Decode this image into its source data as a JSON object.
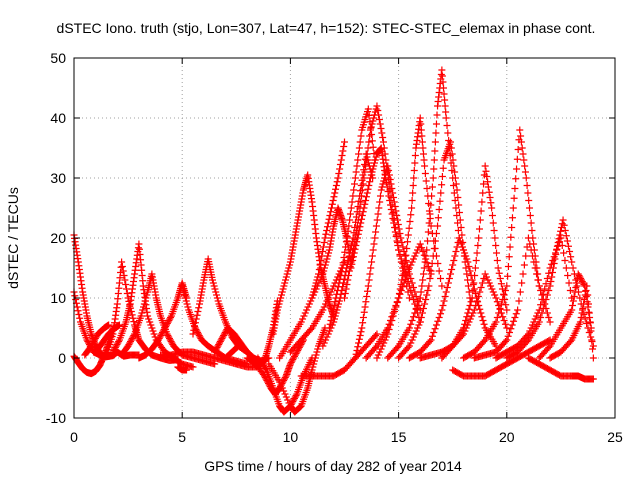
{
  "chart_data": {
    "type": "scatter",
    "title": "dSTEC Iono. truth (stjo, Lon=307, Lat=47, h=152): STEC-STEC_elemax in phase cont.",
    "xlabel": "GPS time / hours of day 282 of year 2014",
    "ylabel": "dSTEC  / TECUs",
    "xlim": [
      0,
      25
    ],
    "ylim": [
      -10,
      50
    ],
    "xticks": [
      0,
      5,
      10,
      15,
      20,
      25
    ],
    "yticks": [
      -10,
      0,
      10,
      20,
      30,
      40,
      50
    ],
    "grid": true,
    "marker": "plus",
    "color": "#ff0000",
    "series": [
      {
        "x": [
          0.0,
          0.2,
          0.4,
          0.6,
          0.8,
          1.0,
          1.2,
          1.4
        ],
        "y": [
          20.5,
          16,
          11,
          7,
          4,
          2,
          0.8,
          0.3
        ]
      },
      {
        "x": [
          0.0,
          0.3,
          0.6,
          0.9,
          1.2,
          1.5,
          1.8,
          2.0,
          2.3,
          2.6,
          3.0
        ],
        "y": [
          11,
          6,
          3,
          1,
          0.5,
          0.2,
          0.4,
          1,
          0.3,
          0.5,
          0.5
        ]
      },
      {
        "x": [
          0.0,
          0.2,
          0.4,
          0.6,
          0.8,
          1.0,
          1.2,
          1.4,
          1.6,
          1.8
        ],
        "y": [
          0.3,
          -0.8,
          -1.8,
          -2.4,
          -2.6,
          -2.2,
          -1.2,
          0.5,
          2.5,
          5.0
        ]
      },
      {
        "x": [
          0.5,
          0.8,
          1.1,
          1.4,
          1.6
        ],
        "y": [
          0.5,
          2,
          4,
          5,
          5.5
        ]
      },
      {
        "x": [
          1.0,
          1.3,
          1.6,
          1.9,
          2.1
        ],
        "y": [
          1,
          2.5,
          4,
          5,
          5.5
        ]
      },
      {
        "x": [
          1.5,
          1.8,
          2.0,
          2.2,
          2.5,
          2.8,
          3.0,
          3.3,
          3.6,
          4.0,
          4.4,
          4.8
        ],
        "y": [
          0.5,
          4,
          9,
          16,
          10,
          5.5,
          3,
          1.5,
          0.5,
          0,
          -0.4,
          -0.3
        ]
      },
      {
        "x": [
          1.8,
          2.1,
          2.4,
          2.6,
          2.8,
          3.0,
          3.2,
          3.4,
          3.8,
          4.2,
          4.6,
          5.0,
          5.5
        ],
        "y": [
          1,
          3,
          6,
          9,
          14,
          19,
          12,
          7,
          3,
          1,
          0,
          -1,
          -1.5
        ]
      },
      {
        "x": [
          2.2,
          2.5,
          2.8,
          3.1,
          3.4,
          3.6,
          3.8,
          4.0,
          4.3,
          4.6,
          5.0,
          5.5,
          6.0,
          6.5
        ],
        "y": [
          0.5,
          2,
          4,
          7,
          11,
          14,
          10,
          7,
          4,
          2,
          0.5,
          0,
          -0.5,
          -1
        ]
      },
      {
        "x": [
          3.0,
          3.3,
          3.6,
          3.9,
          4.2,
          4.5,
          4.8,
          5.0,
          5.2
        ],
        "y": [
          0,
          0.5,
          1.5,
          3,
          5,
          7,
          10,
          12.5,
          10
        ]
      },
      {
        "x": [
          4.0,
          4.5,
          5.0,
          5.5,
          6.0,
          6.5,
          7.0,
          7.5
        ],
        "y": [
          0.5,
          0.5,
          1,
          1,
          0.5,
          0,
          -0.5,
          -1
        ]
      },
      {
        "x": [
          4.8,
          5.0,
          5.2
        ],
        "y": [
          -1.5,
          -2,
          -2
        ]
      },
      {
        "x": [
          5.0,
          5.3,
          5.6,
          5.9,
          6.2,
          6.6,
          7.0,
          7.5,
          8.0
        ],
        "y": [
          12,
          8,
          5,
          3,
          2,
          1,
          0,
          -0.5,
          -1
        ]
      },
      {
        "x": [
          5.5,
          5.8,
          6.0,
          6.2,
          6.4,
          6.7,
          7.0,
          7.3,
          7.6,
          8.0
        ],
        "y": [
          4,
          9,
          13,
          16.5,
          13,
          9,
          6,
          3.5,
          2,
          1
        ]
      },
      {
        "x": [
          6.5,
          6.8,
          7.1,
          7.4,
          7.7,
          8.0,
          8.3,
          8.6,
          9.0
        ],
        "y": [
          1,
          3,
          5,
          4,
          2.5,
          1,
          0,
          -0.5,
          0
        ]
      },
      {
        "x": [
          7.0,
          7.3,
          7.6,
          8.0,
          8.3,
          8.5
        ],
        "y": [
          0,
          1,
          2,
          1,
          0,
          -0.5
        ]
      },
      {
        "x": [
          7.5,
          8.0,
          8.5,
          8.8,
          9.0,
          9.2,
          9.4
        ],
        "y": [
          -1,
          -1.5,
          -1.5,
          -0.5,
          2,
          5,
          9.5
        ]
      },
      {
        "x": [
          8.0,
          8.4,
          8.8,
          9.1,
          9.3,
          9.5,
          9.8,
          10.0,
          10.3,
          10.6
        ],
        "y": [
          0,
          -1,
          -3,
          -5,
          -6,
          -5,
          -3,
          -1,
          1,
          3
        ]
      },
      {
        "x": [
          8.5,
          8.9,
          9.2,
          9.5,
          9.7,
          10.0,
          10.3,
          10.6,
          11.0
        ],
        "y": [
          0,
          -2,
          -5,
          -8,
          -9,
          -8,
          -6,
          -3,
          0
        ]
      },
      {
        "x": [
          9.0,
          9.5,
          10.0,
          10.2,
          10.5,
          10.8,
          11.0,
          11.3,
          11.6
        ],
        "y": [
          -1,
          -4,
          -8,
          -9,
          -8,
          -5,
          -2,
          2,
          5
        ]
      },
      {
        "x": [
          9.2,
          9.4,
          9.7,
          10.0,
          10.2,
          10.4,
          10.6,
          10.8,
          11.0,
          11.2,
          11.4,
          11.6,
          11.8,
          12.0
        ],
        "y": [
          4,
          8,
          12,
          16,
          20,
          24,
          28,
          30.5,
          26,
          20,
          15,
          12,
          9,
          7
        ]
      },
      {
        "x": [
          9.5,
          10.0,
          10.5,
          11.0,
          11.3,
          11.6,
          11.9,
          12.2,
          12.5
        ],
        "y": [
          0,
          3,
          6,
          10,
          14,
          20,
          25,
          30,
          36
        ]
      },
      {
        "x": [
          10.0,
          10.5,
          11.0,
          11.5,
          12.0,
          12.5
        ],
        "y": [
          1,
          3,
          5,
          8,
          12,
          16
        ]
      },
      {
        "x": [
          10.5,
          11.0,
          11.5,
          12.0,
          12.5,
          13.0,
          13.5,
          14.0
        ],
        "y": [
          -3,
          -3,
          -3,
          -3,
          -2,
          0,
          2,
          4
        ]
      },
      {
        "x": [
          11.0,
          11.5,
          11.8,
          12.0,
          12.2,
          12.4,
          12.6,
          12.8
        ],
        "y": [
          10,
          14,
          18,
          22,
          25,
          23,
          20,
          16
        ]
      },
      {
        "x": [
          11.5,
          12.0,
          12.3,
          12.6,
          12.9,
          13.2,
          13.5,
          13.8
        ],
        "y": [
          2,
          6,
          10,
          15,
          20,
          27,
          34,
          30
        ]
      },
      {
        "x": [
          11.8,
          12.1,
          12.4,
          12.7,
          13.0,
          13.3,
          13.6,
          13.9
        ],
        "y": [
          5,
          10,
          15,
          22,
          30,
          38,
          41.5,
          33
        ]
      },
      {
        "x": [
          12.5,
          12.8,
          13.1,
          13.4,
          13.7,
          14.0,
          14.3,
          14.6,
          15.0,
          15.5
        ],
        "y": [
          10,
          16,
          22,
          30,
          38,
          42,
          36,
          28,
          18,
          10
        ]
      },
      {
        "x": [
          12.8,
          13.1,
          13.4,
          13.7,
          14.0,
          14.2,
          14.4,
          14.7,
          15.0,
          15.5,
          16.0
        ],
        "y": [
          15,
          20,
          25,
          30,
          34,
          35,
          30,
          24,
          18,
          12,
          6
        ]
      },
      {
        "x": [
          13.0,
          13.3,
          13.6,
          13.9,
          14.2,
          14.5,
          14.8,
          15.1,
          15.5,
          16.0
        ],
        "y": [
          0,
          5,
          12,
          20,
          28,
          32,
          26,
          20,
          14,
          8
        ]
      },
      {
        "x": [
          13.5,
          14.0,
          14.5,
          15.0,
          15.5,
          16.0,
          16.5
        ],
        "y": [
          0,
          2,
          5,
          10,
          15,
          19,
          14
        ]
      },
      {
        "x": [
          14.0,
          14.5,
          15.0,
          15.3,
          15.6,
          15.8,
          16.0,
          16.2,
          16.5,
          17.0
        ],
        "y": [
          0,
          4,
          10,
          16,
          25,
          35,
          40,
          32,
          22,
          12
        ]
      },
      {
        "x": [
          14.5,
          15.0,
          15.5,
          16.0,
          16.3,
          16.6,
          16.8,
          17.0,
          17.2,
          17.5,
          17.8
        ],
        "y": [
          0,
          2,
          5,
          10,
          18,
          30,
          42,
          48,
          40,
          30,
          20
        ]
      },
      {
        "x": [
          15.0,
          15.5,
          16.0,
          16.4,
          16.8,
          17.1,
          17.4,
          17.7,
          18.0,
          18.3
        ],
        "y": [
          0,
          2,
          6,
          12,
          22,
          33,
          36,
          28,
          18,
          10
        ]
      },
      {
        "x": [
          15.5,
          16.0,
          16.5,
          17.0,
          17.4,
          17.8,
          18.2,
          18.6,
          19.0,
          19.5
        ],
        "y": [
          0,
          1,
          3,
          8,
          14,
          20,
          16,
          10,
          5,
          2
        ]
      },
      {
        "x": [
          16.0,
          16.5,
          17.0,
          17.5,
          18.0,
          18.5,
          19.0,
          19.5,
          20.0
        ],
        "y": [
          0,
          0.5,
          1,
          2,
          4,
          8,
          14,
          10,
          5
        ]
      },
      {
        "x": [
          17.0,
          17.5,
          18.0,
          18.4,
          18.7,
          19.0,
          19.3,
          19.6,
          20.0
        ],
        "y": [
          0,
          2,
          5,
          10,
          20,
          32,
          25,
          15,
          8
        ]
      },
      {
        "x": [
          18.0,
          18.5,
          19.0,
          19.5,
          20.0,
          20.3,
          20.6,
          20.9,
          21.2,
          21.5
        ],
        "y": [
          0,
          1,
          3,
          6,
          12,
          25,
          38,
          30,
          20,
          12
        ]
      },
      {
        "x": [
          18.5,
          19.0,
          19.5,
          20.0,
          20.5,
          21.0,
          21.5,
          22.0
        ],
        "y": [
          0,
          0.5,
          1,
          3,
          8,
          20,
          12,
          6
        ]
      },
      {
        "x": [
          19.5,
          20.0,
          20.5,
          21.0,
          21.5,
          22.0,
          22.5,
          23.0
        ],
        "y": [
          0,
          1,
          2,
          4,
          8,
          15,
          20,
          10
        ]
      },
      {
        "x": [
          20.0,
          20.5,
          21.0,
          21.5,
          22.0,
          22.3,
          22.6,
          23.0,
          23.5,
          24.0
        ],
        "y": [
          0,
          1,
          3,
          6,
          12,
          18,
          23,
          16,
          8,
          2
        ]
      },
      {
        "x": [
          21.0,
          21.5,
          22.0,
          22.5,
          23.0,
          23.3,
          23.6,
          24.0
        ],
        "y": [
          0,
          -1,
          -2,
          -3,
          -3,
          -3,
          -3.5,
          -3.5
        ]
      },
      {
        "x": [
          21.5,
          22.0,
          22.5,
          23.0,
          23.3,
          23.6,
          23.9
        ],
        "y": [
          0,
          2,
          5,
          8,
          14,
          12,
          5
        ]
      },
      {
        "x": [
          22.0,
          22.5,
          23.0,
          23.4,
          23.7,
          24.0
        ],
        "y": [
          0,
          1,
          3,
          6,
          12,
          0
        ]
      },
      {
        "x": [
          17.5,
          18.0,
          18.5,
          19.0,
          19.5,
          20.0,
          20.5,
          21.0,
          21.5,
          22.0
        ],
        "y": [
          -2,
          -3,
          -3,
          -3,
          -2,
          -1,
          0,
          1,
          2,
          3
        ]
      }
    ]
  }
}
